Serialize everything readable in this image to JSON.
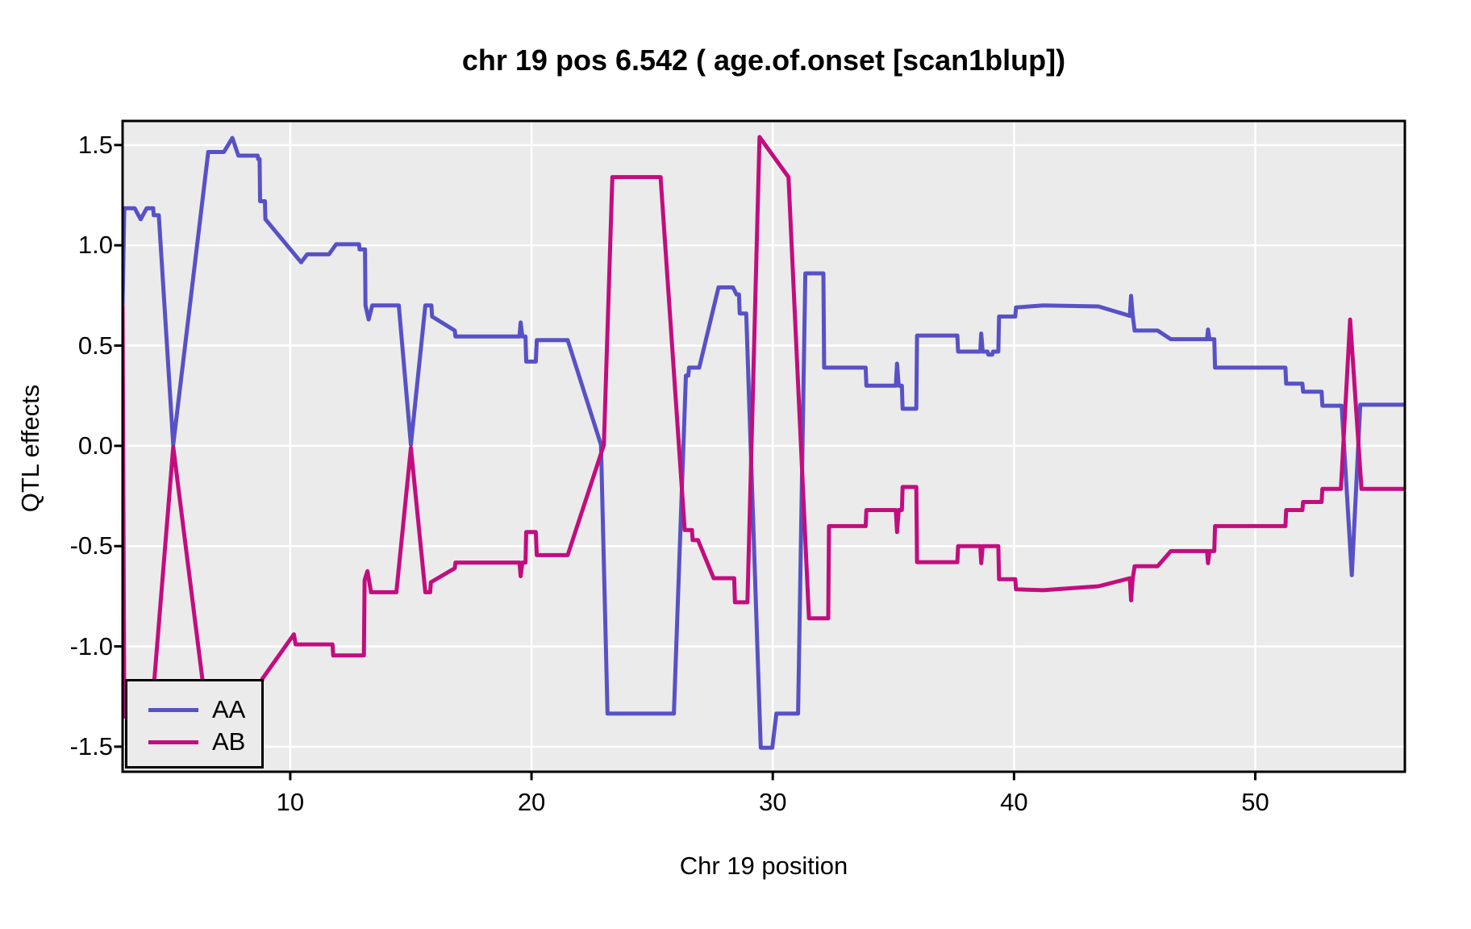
{
  "chart_data": {
    "type": "line",
    "title": "chr 19 pos 6.542 ( age.of.onset  [scan1blup])",
    "xlabel": "Chr 19 position",
    "ylabel": "QTL effects",
    "xlim": [
      3.05,
      56.2
    ],
    "ylim": [
      -1.625,
      1.62
    ],
    "x_ticks": [
      10,
      20,
      30,
      40,
      50
    ],
    "x_tick_labels": [
      "10",
      "20",
      "30",
      "40",
      "50"
    ],
    "y_ticks": [
      1.5,
      1.0,
      0.5,
      0.0,
      -0.5,
      -1.0,
      -1.5
    ],
    "y_tick_labels": [
      "1.5",
      "1.0",
      "0.5",
      "0.0",
      "-0.5",
      "-1.0",
      "-1.5"
    ],
    "grid": {
      "panel_bg": "#EBEBEB",
      "gridline_color": "#FFFFFF",
      "border_color": "#000000",
      "major_only": true
    },
    "legend": {
      "position": "bottom-left-inside",
      "bg": "#EBEBEB",
      "border": "#000000"
    },
    "series": [
      {
        "name": "AA",
        "color": "#5851C6",
        "points": [
          [
            3.05,
            0.7
          ],
          [
            3.12,
            1.185
          ],
          [
            3.55,
            1.185
          ],
          [
            3.8,
            1.13
          ],
          [
            4.05,
            1.185
          ],
          [
            4.32,
            1.185
          ],
          [
            4.34,
            1.15
          ],
          [
            4.55,
            1.15
          ],
          [
            5.15,
            0.005
          ],
          [
            6.6,
            1.465
          ],
          [
            7.25,
            1.465
          ],
          [
            7.6,
            1.535
          ],
          [
            7.85,
            1.447
          ],
          [
            8.65,
            1.447
          ],
          [
            8.67,
            1.43
          ],
          [
            8.73,
            1.43
          ],
          [
            8.75,
            1.22
          ],
          [
            8.95,
            1.22
          ],
          [
            8.97,
            1.13
          ],
          [
            10.45,
            0.915
          ],
          [
            10.7,
            0.955
          ],
          [
            11.6,
            0.955
          ],
          [
            11.9,
            1.005
          ],
          [
            12.85,
            1.005
          ],
          [
            12.87,
            0.98
          ],
          [
            13.1,
            0.98
          ],
          [
            13.12,
            0.7
          ],
          [
            13.25,
            0.63
          ],
          [
            13.4,
            0.7
          ],
          [
            14.5,
            0.7
          ],
          [
            15.0,
            0.005
          ],
          [
            15.6,
            0.7
          ],
          [
            15.85,
            0.7
          ],
          [
            15.88,
            0.645
          ],
          [
            16.82,
            0.575
          ],
          [
            16.85,
            0.545
          ],
          [
            19.5,
            0.545
          ],
          [
            19.55,
            0.615
          ],
          [
            19.62,
            0.545
          ],
          [
            19.75,
            0.545
          ],
          [
            19.78,
            0.42
          ],
          [
            20.18,
            0.42
          ],
          [
            20.22,
            0.527
          ],
          [
            21.5,
            0.527
          ],
          [
            22.88,
            0.005
          ],
          [
            23.15,
            -1.335
          ],
          [
            25.9,
            -1.335
          ],
          [
            26.4,
            0.35
          ],
          [
            26.5,
            0.35
          ],
          [
            26.53,
            0.39
          ],
          [
            26.95,
            0.39
          ],
          [
            27.75,
            0.79
          ],
          [
            28.35,
            0.79
          ],
          [
            28.5,
            0.755
          ],
          [
            28.6,
            0.755
          ],
          [
            28.63,
            0.66
          ],
          [
            28.9,
            0.66
          ],
          [
            29.5,
            -1.505
          ],
          [
            29.98,
            -1.505
          ],
          [
            30.15,
            -1.335
          ],
          [
            31.05,
            -1.335
          ],
          [
            31.35,
            0.86
          ],
          [
            32.1,
            0.86
          ],
          [
            32.13,
            0.39
          ],
          [
            33.85,
            0.39
          ],
          [
            33.88,
            0.3
          ],
          [
            35.1,
            0.3
          ],
          [
            35.15,
            0.41
          ],
          [
            35.22,
            0.3
          ],
          [
            35.35,
            0.3
          ],
          [
            35.38,
            0.185
          ],
          [
            35.95,
            0.185
          ],
          [
            35.98,
            0.55
          ],
          [
            37.65,
            0.55
          ],
          [
            37.68,
            0.47
          ],
          [
            38.6,
            0.47
          ],
          [
            38.64,
            0.56
          ],
          [
            38.7,
            0.47
          ],
          [
            38.9,
            0.47
          ],
          [
            38.93,
            0.455
          ],
          [
            39.1,
            0.455
          ],
          [
            39.13,
            0.47
          ],
          [
            39.35,
            0.47
          ],
          [
            39.38,
            0.645
          ],
          [
            40.05,
            0.645
          ],
          [
            40.08,
            0.69
          ],
          [
            41.2,
            0.7
          ],
          [
            43.5,
            0.695
          ],
          [
            44.8,
            0.648
          ],
          [
            44.85,
            0.748
          ],
          [
            44.92,
            0.648
          ],
          [
            45.0,
            0.575
          ],
          [
            45.95,
            0.575
          ],
          [
            46.5,
            0.532
          ],
          [
            48.0,
            0.532
          ],
          [
            48.04,
            0.58
          ],
          [
            48.1,
            0.532
          ],
          [
            48.3,
            0.532
          ],
          [
            48.33,
            0.39
          ],
          [
            51.25,
            0.39
          ],
          [
            51.28,
            0.31
          ],
          [
            51.95,
            0.31
          ],
          [
            51.98,
            0.27
          ],
          [
            52.75,
            0.27
          ],
          [
            52.78,
            0.2
          ],
          [
            53.58,
            0.2
          ],
          [
            54.0,
            -0.645
          ],
          [
            54.35,
            0.205
          ],
          [
            56.2,
            0.205
          ]
        ]
      },
      {
        "name": "AB",
        "color": "#C30D7E",
        "points": [
          [
            3.05,
            0.7
          ],
          [
            3.12,
            -1.35
          ],
          [
            4.3,
            -1.35
          ],
          [
            4.35,
            -1.19
          ],
          [
            5.15,
            -0.005
          ],
          [
            6.5,
            -1.3
          ],
          [
            6.7,
            -1.46
          ],
          [
            7.6,
            -1.52
          ],
          [
            8.3,
            -1.46
          ],
          [
            8.55,
            -1.3
          ],
          [
            8.85,
            -1.16
          ],
          [
            10.15,
            -0.94
          ],
          [
            10.22,
            -0.99
          ],
          [
            11.75,
            -0.99
          ],
          [
            11.78,
            -1.045
          ],
          [
            13.05,
            -1.045
          ],
          [
            13.08,
            -0.67
          ],
          [
            13.2,
            -0.625
          ],
          [
            13.35,
            -0.73
          ],
          [
            14.4,
            -0.73
          ],
          [
            15.0,
            -0.01
          ],
          [
            15.6,
            -0.73
          ],
          [
            15.8,
            -0.73
          ],
          [
            15.83,
            -0.68
          ],
          [
            16.82,
            -0.61
          ],
          [
            16.85,
            -0.582
          ],
          [
            19.5,
            -0.582
          ],
          [
            19.55,
            -0.65
          ],
          [
            19.62,
            -0.582
          ],
          [
            19.75,
            -0.582
          ],
          [
            19.78,
            -0.43
          ],
          [
            20.18,
            -0.43
          ],
          [
            20.22,
            -0.545
          ],
          [
            21.5,
            -0.545
          ],
          [
            23.0,
            0.005
          ],
          [
            23.35,
            1.34
          ],
          [
            25.35,
            1.34
          ],
          [
            26.35,
            -0.42
          ],
          [
            26.65,
            -0.42
          ],
          [
            26.68,
            -0.47
          ],
          [
            26.9,
            -0.47
          ],
          [
            27.55,
            -0.66
          ],
          [
            28.4,
            -0.66
          ],
          [
            28.43,
            -0.78
          ],
          [
            28.95,
            -0.78
          ],
          [
            29.45,
            1.54
          ],
          [
            30.65,
            1.34
          ],
          [
            31.5,
            -0.86
          ],
          [
            32.3,
            -0.86
          ],
          [
            32.33,
            -0.4
          ],
          [
            33.85,
            -0.4
          ],
          [
            33.88,
            -0.32
          ],
          [
            35.1,
            -0.32
          ],
          [
            35.15,
            -0.43
          ],
          [
            35.22,
            -0.32
          ],
          [
            35.35,
            -0.32
          ],
          [
            35.38,
            -0.205
          ],
          [
            35.95,
            -0.205
          ],
          [
            35.98,
            -0.58
          ],
          [
            37.65,
            -0.58
          ],
          [
            37.68,
            -0.5
          ],
          [
            38.6,
            -0.5
          ],
          [
            38.64,
            -0.585
          ],
          [
            38.7,
            -0.5
          ],
          [
            39.35,
            -0.5
          ],
          [
            39.38,
            -0.665
          ],
          [
            40.05,
            -0.665
          ],
          [
            40.08,
            -0.715
          ],
          [
            41.2,
            -0.72
          ],
          [
            43.5,
            -0.7
          ],
          [
            44.8,
            -0.66
          ],
          [
            44.85,
            -0.77
          ],
          [
            44.92,
            -0.66
          ],
          [
            45.0,
            -0.6
          ],
          [
            45.95,
            -0.6
          ],
          [
            46.5,
            -0.525
          ],
          [
            48.0,
            -0.525
          ],
          [
            48.04,
            -0.585
          ],
          [
            48.1,
            -0.525
          ],
          [
            48.3,
            -0.525
          ],
          [
            48.33,
            -0.4
          ],
          [
            51.25,
            -0.4
          ],
          [
            51.28,
            -0.32
          ],
          [
            51.95,
            -0.32
          ],
          [
            51.98,
            -0.28
          ],
          [
            52.75,
            -0.28
          ],
          [
            52.78,
            -0.215
          ],
          [
            53.55,
            -0.215
          ],
          [
            53.93,
            0.63
          ],
          [
            54.4,
            -0.215
          ],
          [
            56.2,
            -0.215
          ]
        ]
      }
    ]
  }
}
